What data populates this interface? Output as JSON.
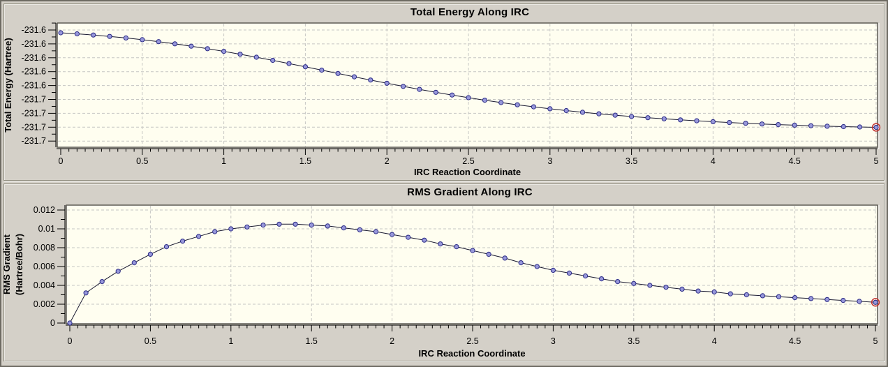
{
  "colors": {
    "panel_background": "#d4d0c8",
    "plot_background": "#fffef0",
    "plot_border": "#54524c",
    "grid": "#c6c6c3",
    "series_line": "#191930",
    "marker_fill": "#9797da",
    "marker_stroke": "#2a2a85",
    "highlight_ring": "#c03030",
    "text": "#000000"
  },
  "chart_data": [
    {
      "type": "line",
      "title": "Total Energy Along IRC",
      "xlabel": "IRC Reaction Coordinate",
      "ylabel_lines": [
        "Total Energy (Hartree)"
      ],
      "xlim": [
        0,
        5
      ],
      "ylim": [
        -231.729,
        -231.547
      ],
      "grid": true,
      "marker": "circle",
      "highlight_last_point": true,
      "x_tick_values": [
        0,
        0.5,
        1,
        1.5,
        2,
        2.5,
        3,
        3.5,
        4,
        4.5,
        5
      ],
      "x_tick_labels": [
        "0",
        "0.5",
        "1",
        "1.5",
        "2",
        "2.5",
        "3",
        "3.5",
        "4",
        "4.5",
        "5"
      ],
      "x_minor_step": 0.05,
      "y_tick_values": [
        -231.56,
        -231.58,
        -231.6,
        -231.62,
        -231.64,
        -231.66,
        -231.68,
        -231.7,
        -231.72
      ],
      "y_tick_labels": [
        "-231.6",
        "-231.6",
        "-231.6",
        "-231.6",
        "-231.6",
        "-231.7",
        "-231.7",
        "-231.7",
        "-231.7"
      ],
      "x": [
        0,
        0.1,
        0.2,
        0.3,
        0.4,
        0.5,
        0.6,
        0.7,
        0.8,
        0.9,
        1.0,
        1.1,
        1.2,
        1.3,
        1.4,
        1.5,
        1.6,
        1.7,
        1.8,
        1.9,
        2.0,
        2.1,
        2.2,
        2.3,
        2.4,
        2.5,
        2.6,
        2.7,
        2.8,
        2.9,
        3.0,
        3.1,
        3.2,
        3.3,
        3.4,
        3.5,
        3.6,
        3.7,
        3.8,
        3.9,
        4.0,
        4.1,
        4.2,
        4.3,
        4.4,
        4.5,
        4.6,
        4.7,
        4.8,
        4.9,
        5.0
      ],
      "y": [
        -231.564,
        -231.5655,
        -231.5672,
        -231.5692,
        -231.5715,
        -231.574,
        -231.5768,
        -231.5799,
        -231.5833,
        -231.5869,
        -231.5908,
        -231.5949,
        -231.5992,
        -231.6037,
        -231.6083,
        -231.613,
        -231.6178,
        -231.6226,
        -231.6274,
        -231.6321,
        -231.6367,
        -231.6412,
        -231.6455,
        -231.6497,
        -231.6537,
        -231.6575,
        -231.6611,
        -231.6645,
        -231.6677,
        -231.6707,
        -231.6735,
        -231.6761,
        -231.6785,
        -231.6807,
        -231.6827,
        -231.6846,
        -231.6863,
        -231.6879,
        -231.6894,
        -231.6908,
        -231.6921,
        -231.6933,
        -231.6944,
        -231.6954,
        -231.6963,
        -231.6971,
        -231.6979,
        -231.6986,
        -231.6992,
        -231.6997,
        -231.7002
      ]
    },
    {
      "type": "line",
      "title": "RMS Gradient Along IRC",
      "xlabel": "IRC Reaction Coordinate",
      "ylabel_lines": [
        "RMS Gradient",
        "(Hartree/Bohr)"
      ],
      "xlim": [
        0,
        5
      ],
      "ylim": [
        0,
        0.0125
      ],
      "grid": true,
      "marker": "circle",
      "highlight_last_point": true,
      "x_tick_values": [
        0,
        0.5,
        1,
        1.5,
        2,
        2.5,
        3,
        3.5,
        4,
        4.5,
        5
      ],
      "x_tick_labels": [
        "0",
        "0.5",
        "1",
        "1.5",
        "2",
        "2.5",
        "3",
        "3.5",
        "4",
        "4.5",
        "5"
      ],
      "x_minor_step": 0.05,
      "y_tick_values": [
        0.012,
        0.01,
        0.008,
        0.006,
        0.004,
        0.002,
        0
      ],
      "y_tick_labels": [
        "0.012",
        "0.01",
        "0.008",
        "0.006",
        "0.004",
        "0.002",
        "0"
      ],
      "x": [
        0,
        0.1,
        0.2,
        0.3,
        0.4,
        0.5,
        0.6,
        0.7,
        0.8,
        0.9,
        1.0,
        1.1,
        1.2,
        1.3,
        1.4,
        1.5,
        1.6,
        1.7,
        1.8,
        1.9,
        2.0,
        2.1,
        2.2,
        2.3,
        2.4,
        2.5,
        2.6,
        2.7,
        2.8,
        2.9,
        3.0,
        3.1,
        3.2,
        3.3,
        3.4,
        3.5,
        3.6,
        3.7,
        3.8,
        3.9,
        4.0,
        4.1,
        4.2,
        4.3,
        4.4,
        4.5,
        4.6,
        4.7,
        4.8,
        4.9,
        5.0
      ],
      "y": [
        0.0,
        0.0032,
        0.0044,
        0.0055,
        0.0064,
        0.0073,
        0.0081,
        0.0087,
        0.0092,
        0.0097,
        0.01,
        0.0102,
        0.0104,
        0.0105,
        0.0105,
        0.0104,
        0.0103,
        0.0101,
        0.0099,
        0.0097,
        0.0094,
        0.0091,
        0.0088,
        0.0084,
        0.0081,
        0.0077,
        0.0073,
        0.0069,
        0.0064,
        0.006,
        0.0056,
        0.0053,
        0.005,
        0.0047,
        0.0044,
        0.0042,
        0.004,
        0.0038,
        0.0036,
        0.0034,
        0.0033,
        0.0031,
        0.003,
        0.0029,
        0.0028,
        0.0027,
        0.0026,
        0.0025,
        0.0024,
        0.0023,
        0.0022
      ]
    }
  ]
}
